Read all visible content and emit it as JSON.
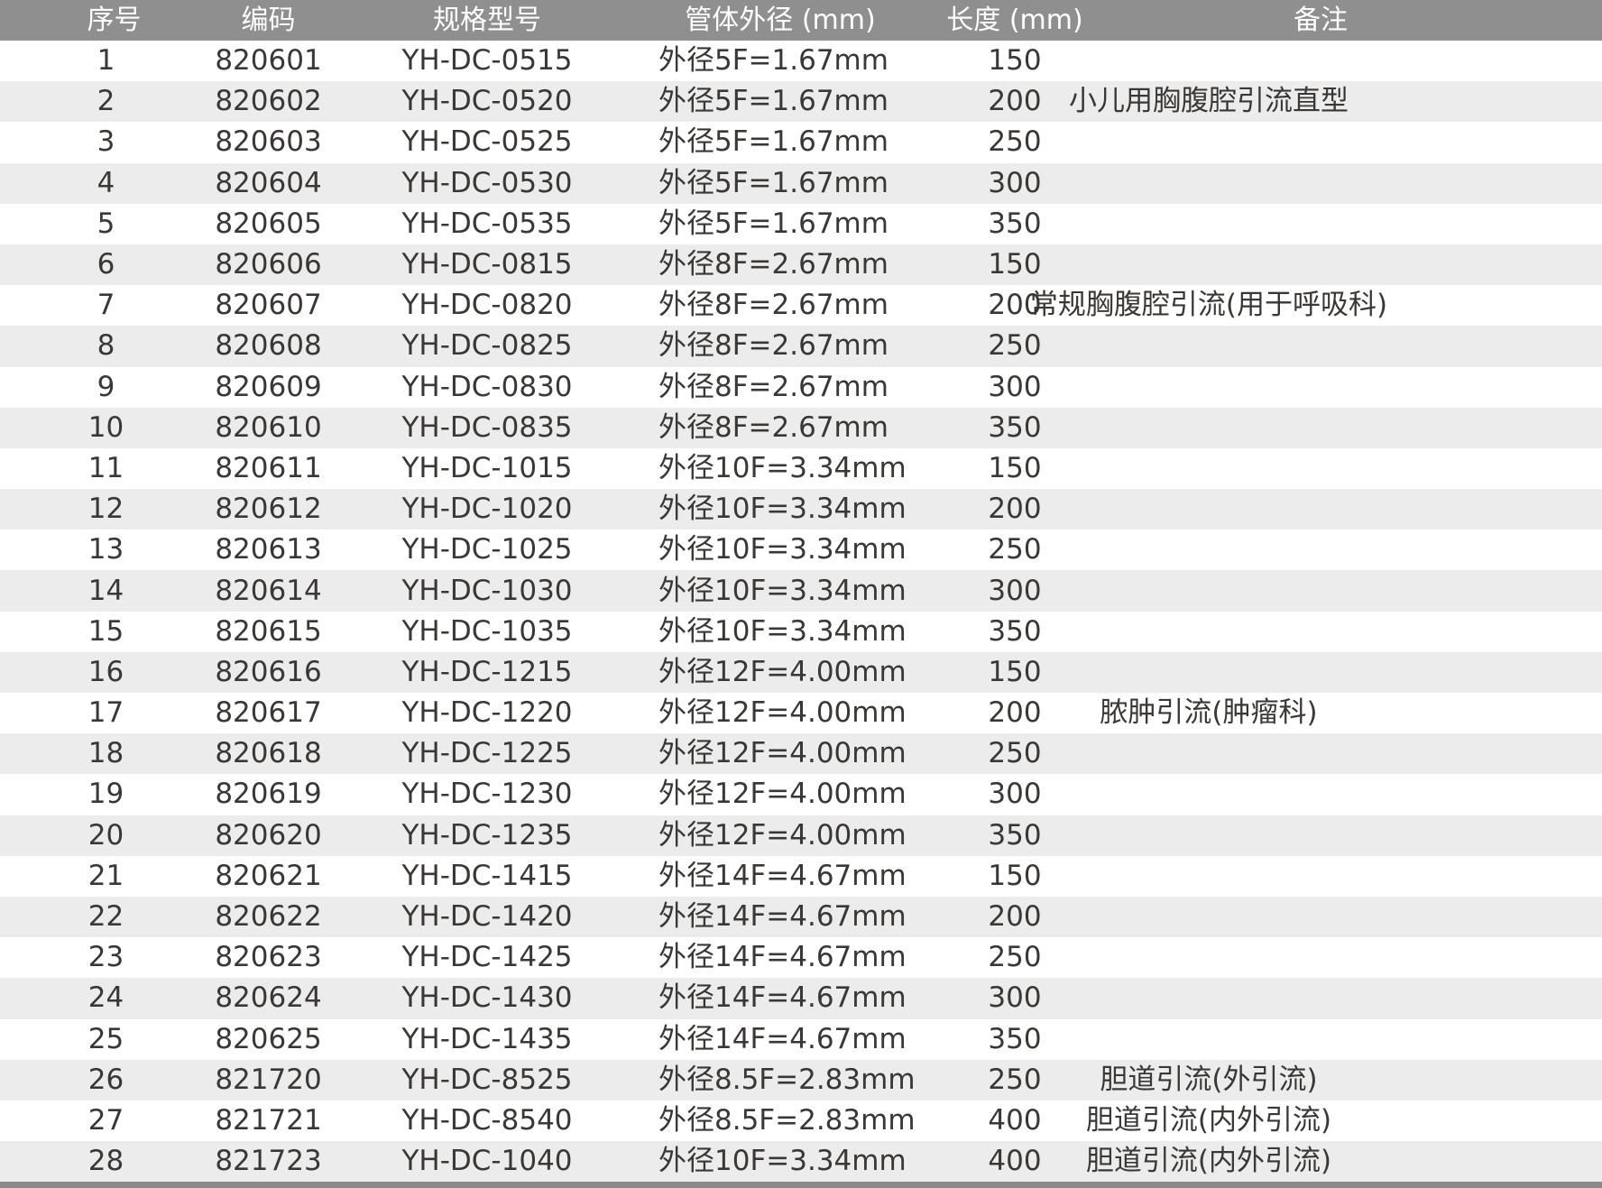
{
  "table": {
    "headers": {
      "seq": "序号",
      "code": "编码",
      "model": "规格型号",
      "outer_diameter": "管体外径 (mm)",
      "length": "长度 (mm)",
      "remark": "备注"
    },
    "rows": [
      {
        "seq": "1",
        "code": "820601",
        "model": "YH-DC-0515",
        "outer_diameter": "外径5F=1.67mm",
        "length": "150",
        "remark": ""
      },
      {
        "seq": "2",
        "code": "820602",
        "model": "YH-DC-0520",
        "outer_diameter": "外径5F=1.67mm",
        "length": "200",
        "remark": "小儿用胸腹腔引流直型"
      },
      {
        "seq": "3",
        "code": "820603",
        "model": "YH-DC-0525",
        "outer_diameter": "外径5F=1.67mm",
        "length": "250",
        "remark": ""
      },
      {
        "seq": "4",
        "code": "820604",
        "model": "YH-DC-0530",
        "outer_diameter": "外径5F=1.67mm",
        "length": "300",
        "remark": ""
      },
      {
        "seq": "5",
        "code": "820605",
        "model": "YH-DC-0535",
        "outer_diameter": "外径5F=1.67mm",
        "length": "350",
        "remark": ""
      },
      {
        "seq": "6",
        "code": "820606",
        "model": "YH-DC-0815",
        "outer_diameter": "外径8F=2.67mm",
        "length": "150",
        "remark": ""
      },
      {
        "seq": "7",
        "code": "820607",
        "model": "YH-DC-0820",
        "outer_diameter": "外径8F=2.67mm",
        "length": "200",
        "remark": "常规胸腹腔引流(用于呼吸科)"
      },
      {
        "seq": "8",
        "code": "820608",
        "model": "YH-DC-0825",
        "outer_diameter": "外径8F=2.67mm",
        "length": "250",
        "remark": ""
      },
      {
        "seq": "9",
        "code": "820609",
        "model": "YH-DC-0830",
        "outer_diameter": "外径8F=2.67mm",
        "length": "300",
        "remark": ""
      },
      {
        "seq": "10",
        "code": "820610",
        "model": "YH-DC-0835",
        "outer_diameter": "外径8F=2.67mm",
        "length": "350",
        "remark": ""
      },
      {
        "seq": "11",
        "code": "820611",
        "model": "YH-DC-1015",
        "outer_diameter": "外径10F=3.34mm",
        "length": "150",
        "remark": ""
      },
      {
        "seq": "12",
        "code": "820612",
        "model": "YH-DC-1020",
        "outer_diameter": "外径10F=3.34mm",
        "length": "200",
        "remark": ""
      },
      {
        "seq": "13",
        "code": "820613",
        "model": "YH-DC-1025",
        "outer_diameter": "外径10F=3.34mm",
        "length": "250",
        "remark": ""
      },
      {
        "seq": "14",
        "code": "820614",
        "model": "YH-DC-1030",
        "outer_diameter": "外径10F=3.34mm",
        "length": "300",
        "remark": ""
      },
      {
        "seq": "15",
        "code": "820615",
        "model": "YH-DC-1035",
        "outer_diameter": "外径10F=3.34mm",
        "length": "350",
        "remark": ""
      },
      {
        "seq": "16",
        "code": "820616",
        "model": "YH-DC-1215",
        "outer_diameter": "外径12F=4.00mm",
        "length": "150",
        "remark": ""
      },
      {
        "seq": "17",
        "code": "820617",
        "model": "YH-DC-1220",
        "outer_diameter": "外径12F=4.00mm",
        "length": "200",
        "remark": "脓肿引流(肿瘤科)"
      },
      {
        "seq": "18",
        "code": "820618",
        "model": "YH-DC-1225",
        "outer_diameter": "外径12F=4.00mm",
        "length": "250",
        "remark": ""
      },
      {
        "seq": "19",
        "code": "820619",
        "model": "YH-DC-1230",
        "outer_diameter": "外径12F=4.00mm",
        "length": "300",
        "remark": ""
      },
      {
        "seq": "20",
        "code": "820620",
        "model": "YH-DC-1235",
        "outer_diameter": "外径12F=4.00mm",
        "length": "350",
        "remark": ""
      },
      {
        "seq": "21",
        "code": "820621",
        "model": "YH-DC-1415",
        "outer_diameter": "外径14F=4.67mm",
        "length": "150",
        "remark": ""
      },
      {
        "seq": "22",
        "code": "820622",
        "model": "YH-DC-1420",
        "outer_diameter": "外径14F=4.67mm",
        "length": "200",
        "remark": ""
      },
      {
        "seq": "23",
        "code": "820623",
        "model": "YH-DC-1425",
        "outer_diameter": "外径14F=4.67mm",
        "length": "250",
        "remark": ""
      },
      {
        "seq": "24",
        "code": "820624",
        "model": "YH-DC-1430",
        "outer_diameter": "外径14F=4.67mm",
        "length": "300",
        "remark": ""
      },
      {
        "seq": "25",
        "code": "820625",
        "model": "YH-DC-1435",
        "outer_diameter": "外径14F=4.67mm",
        "length": "350",
        "remark": ""
      },
      {
        "seq": "26",
        "code": "821720",
        "model": "YH-DC-8525",
        "outer_diameter": "外径8.5F=2.83mm",
        "length": "250",
        "remark": "胆道引流(外引流)"
      },
      {
        "seq": "27",
        "code": "821721",
        "model": "YH-DC-8540",
        "outer_diameter": "外径8.5F=2.83mm",
        "length": "400",
        "remark": "胆道引流(内外引流)"
      },
      {
        "seq": "28",
        "code": "821723",
        "model": "YH-DC-1040",
        "outer_diameter": "外径10F=3.34mm",
        "length": "400",
        "remark": "胆道引流(内外引流)"
      }
    ]
  },
  "colors": {
    "header_bg": "#8f8f8f",
    "header_text": "#ffffff",
    "stripe_bg": "#ececec",
    "body_text": "#3a3734",
    "bottom_bar": "#8a8a8a"
  }
}
